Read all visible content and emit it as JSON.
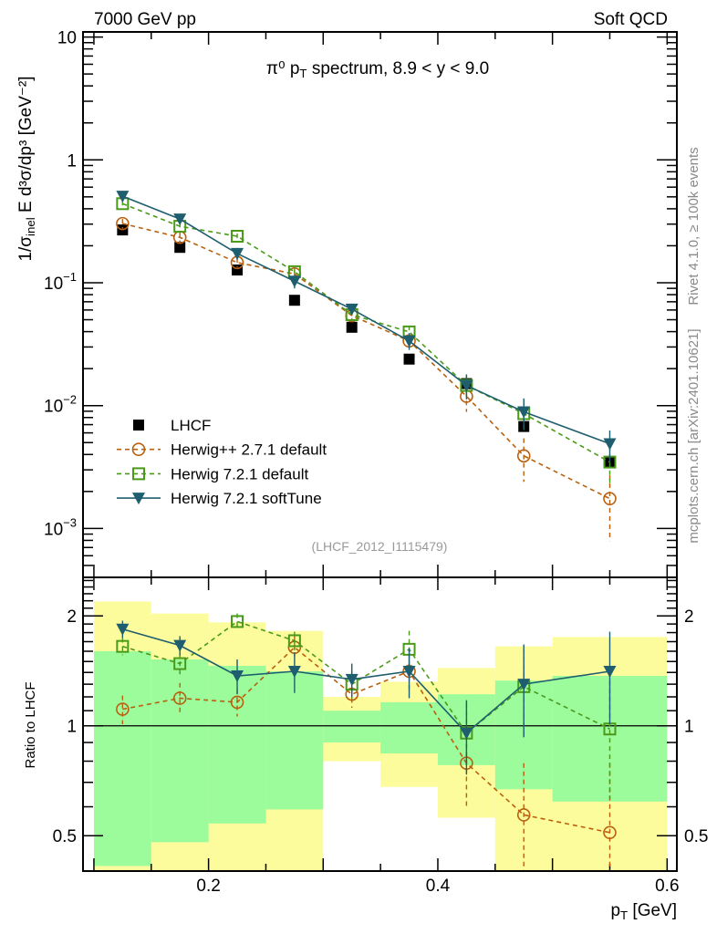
{
  "header": {
    "left": "7000 GeV pp",
    "right": "Soft QCD"
  },
  "side_text": {
    "top": "Rivet 4.1.0, ≥ 100k events",
    "bottom": "mcplots.cern.ch [arXiv:2401.10621]"
  },
  "analysis_id": "(LHCF_2012_I1115479)",
  "chart_data": [
    {
      "type": "line",
      "title": "π⁰ p_T spectrum, 8.9 < y < 9.0",
      "title_parts": {
        "pi": "π",
        "zero": "0",
        "p": " p",
        "T": "T",
        "rest": " spectrum, 8.9 < y < 9.0"
      },
      "ylabel": "1/σ_inel E d³σ/dp³ [GeV⁻²]",
      "ylabel_parts": {
        "a": "1/σ",
        "inel": "inel",
        "b": " E d",
        "c3": "3",
        "d": "σ/dp",
        "e3": "3",
        "f": " [GeV",
        "m2": "-2",
        "g": "]"
      },
      "yscale": "log",
      "ylim": [
        0.0004,
        11
      ],
      "xlim": [
        0.0905,
        0.6085
      ],
      "ytick_labels": [
        {
          "v": 10,
          "t": "10"
        },
        {
          "v": 1,
          "t": "1"
        },
        {
          "v": 0.1,
          "t": "10",
          "e": "−1"
        },
        {
          "v": 0.01,
          "t": "10",
          "e": "−2"
        },
        {
          "v": 0.001,
          "t": "10",
          "e": "−3"
        }
      ],
      "legend_position": "bottom-left",
      "x": [
        0.125,
        0.175,
        0.225,
        0.275,
        0.325,
        0.375,
        0.425,
        0.475,
        0.55
      ],
      "series": [
        {
          "name": "LHCF",
          "key": "lhcf",
          "color": "#000000",
          "marker": "square-filled",
          "line": "none",
          "values": [
            0.269,
            0.194,
            0.127,
            0.072,
            0.0434,
            0.0239,
            0.0151,
            0.00676,
            0.00347
          ]
        },
        {
          "name": "Herwig++ 2.7.1 default",
          "key": "hpp",
          "color": "#b8600f",
          "marker": "circle-open",
          "line": "dashed",
          "values": [
            0.303,
            0.234,
            0.146,
            0.118,
            0.054,
            0.0336,
            0.0119,
            0.0039,
            0.00175
          ]
        },
        {
          "name": "Herwig 7.2.1 default",
          "key": "h7",
          "color": "#4a9a1a",
          "marker": "square-open",
          "line": "dashed",
          "values": [
            0.44,
            0.288,
            0.239,
            0.123,
            0.055,
            0.0398,
            0.0146,
            0.0086,
            0.00347
          ]
        },
        {
          "name": "Herwig 7.2.1 softTune",
          "key": "h7s",
          "color": "#1e5e6e",
          "marker": "triangle-down-filled",
          "line": "solid",
          "values": [
            0.506,
            0.33,
            0.173,
            0.103,
            0.061,
            0.0336,
            0.0146,
            0.0089,
            0.00489
          ]
        }
      ]
    },
    {
      "type": "line",
      "ylabel": "Ratio to LHCF",
      "xlabel": "p_T [GeV]",
      "xlabel_parts": {
        "p": "p",
        "T": "T",
        "rest": " [GeV]"
      },
      "yscale": "log",
      "ylim": [
        0.4,
        2.55
      ],
      "xlim": [
        0.0905,
        0.6085
      ],
      "xtick_labels": [
        {
          "v": 0.2,
          "t": "0.2"
        },
        {
          "v": 0.4,
          "t": "0.4"
        },
        {
          "v": 0.6,
          "t": "0.6"
        }
      ],
      "ytick_labels": [
        {
          "v": 2,
          "t": "2"
        },
        {
          "v": 1,
          "t": "1"
        },
        {
          "v": 0.5,
          "t": "0.5"
        }
      ],
      "bands": {
        "bin_edges": [
          0.1,
          0.15,
          0.2,
          0.25,
          0.3,
          0.35,
          0.4,
          0.45,
          0.5,
          0.6
        ],
        "one_sigma": {
          "color": "#9cfc9c",
          "lo": [
            0.413,
            0.48,
            0.54,
            0.59,
            0.9,
            0.84,
            0.78,
            0.67,
            0.62
          ],
          "hi": [
            1.6,
            1.52,
            1.46,
            1.41,
            1.1,
            1.16,
            1.22,
            1.33,
            1.37
          ]
        },
        "two_sigma": {
          "color": "#fdfc9c",
          "lo": [
            0.3,
            0.3,
            0.3,
            0.3,
            0.8,
            0.68,
            0.56,
            0.3,
            0.3
          ],
          "hi": [
            2.19,
            2.03,
            1.92,
            1.82,
            1.2,
            1.32,
            1.44,
            1.65,
            1.75
          ]
        }
      },
      "x": [
        0.125,
        0.175,
        0.225,
        0.275,
        0.325,
        0.375,
        0.425,
        0.475,
        0.55
      ],
      "series": [
        {
          "key": "hpp",
          "values": [
            1.11,
            1.19,
            1.16,
            1.64,
            1.22,
            1.41,
            0.79,
            0.57,
            0.51
          ],
          "err": [
            0.1,
            0.12,
            0.1,
            0.12,
            0.1,
            0.18,
            0.2,
            0.22,
            0.28
          ]
        },
        {
          "key": "h7",
          "values": [
            1.65,
            1.48,
            1.93,
            1.71,
            1.3,
            1.62,
            0.955,
            1.28,
            0.98
          ],
          "err": [
            0.09,
            0.1,
            0.1,
            0.1,
            0.12,
            0.2,
            0.2,
            0.35,
            0.35
          ]
        },
        {
          "key": "h7s",
          "values": [
            1.84,
            1.66,
            1.37,
            1.41,
            1.34,
            1.41,
            0.955,
            1.3,
            1.41
          ],
          "err": [
            0.1,
            0.1,
            0.15,
            0.18,
            0.14,
            0.22,
            0.22,
            0.37,
            0.4
          ]
        }
      ]
    }
  ]
}
